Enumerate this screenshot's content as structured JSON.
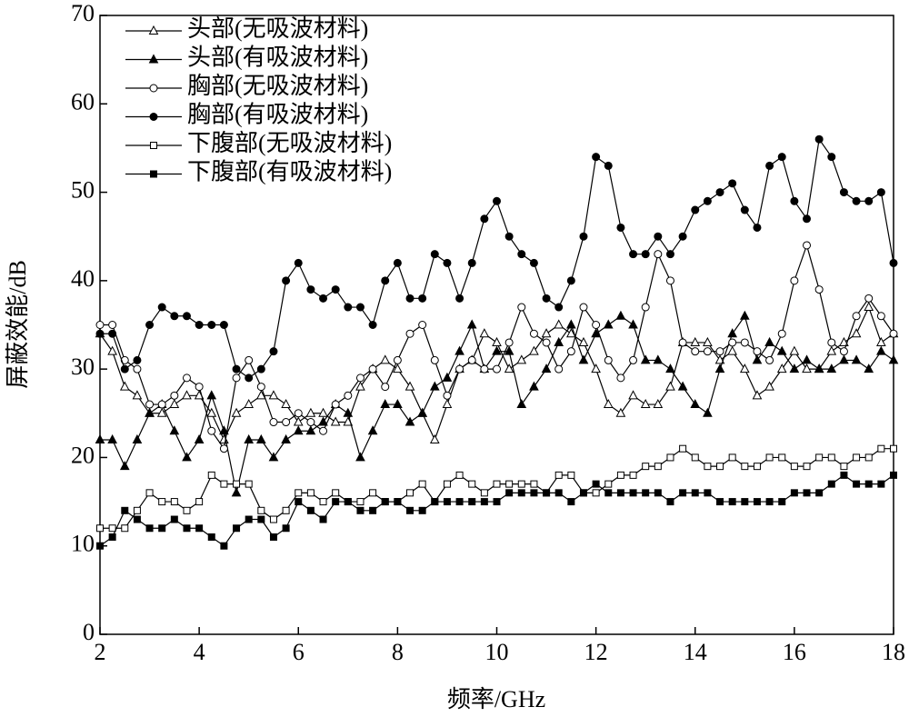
{
  "chart_data": {
    "type": "line",
    "xlabel": "频率/GHz",
    "ylabel": "屏蔽效能/dB",
    "xlim": [
      2,
      18
    ],
    "xticks": [
      2,
      4,
      6,
      8,
      10,
      12,
      14,
      16,
      18
    ],
    "ylim": [
      0,
      70
    ],
    "yticks": [
      0,
      10,
      20,
      30,
      40,
      50,
      60,
      70
    ],
    "legend": "upper-left",
    "x": [
      2,
      2.25,
      2.5,
      2.75,
      3,
      3.25,
      3.5,
      3.75,
      4,
      4.25,
      4.5,
      4.75,
      5,
      5.25,
      5.5,
      5.75,
      6,
      6.25,
      6.5,
      6.75,
      7,
      7.25,
      7.5,
      7.75,
      8,
      8.25,
      8.5,
      8.75,
      9,
      9.25,
      9.5,
      9.75,
      10,
      10.25,
      10.5,
      10.75,
      11,
      11.25,
      11.5,
      11.75,
      12,
      12.25,
      12.5,
      12.75,
      13,
      13.25,
      13.5,
      13.75,
      14,
      14.25,
      14.5,
      14.75,
      15,
      15.25,
      15.5,
      15.75,
      16,
      16.25,
      16.5,
      16.75,
      17,
      17.25,
      17.5,
      17.75,
      18
    ],
    "series": [
      {
        "name": "头部(无吸波材料)",
        "color": "#000000",
        "marker": "triangle-open",
        "values": [
          34,
          32,
          28,
          27,
          25,
          25,
          26,
          27,
          27,
          25,
          22,
          25,
          26,
          27,
          27,
          26,
          24,
          25,
          25,
          24,
          24,
          28,
          30,
          31,
          30,
          28,
          25,
          22,
          26,
          30,
          31,
          34,
          33,
          30,
          31,
          32,
          34,
          35,
          34,
          33,
          30,
          26,
          25,
          27,
          26,
          26,
          28,
          33,
          33,
          33,
          31,
          32,
          30,
          27,
          28,
          30,
          32,
          30,
          30,
          32,
          33,
          34,
          37,
          33,
          34
        ]
      },
      {
        "name": "头部(有吸波材料)",
        "color": "#000000",
        "marker": "triangle-filled",
        "values": [
          22,
          22,
          19,
          22,
          25,
          26,
          23,
          20,
          22,
          27,
          23,
          16,
          22,
          22,
          20,
          22,
          23,
          23,
          24,
          26,
          25,
          20,
          23,
          26,
          26,
          24,
          25,
          28,
          29,
          32,
          35,
          30,
          32,
          32,
          26,
          28,
          30,
          33,
          35,
          31,
          34,
          35,
          36,
          35,
          31,
          31,
          30,
          28,
          26,
          25,
          30,
          34,
          36,
          31,
          33,
          32,
          30,
          31,
          30,
          30,
          31,
          31,
          30,
          32,
          31
        ]
      },
      {
        "name": "胸部(无吸波材料)",
        "color": "#000000",
        "marker": "circle-open",
        "values": [
          35,
          35,
          31,
          30,
          26,
          26,
          27,
          29,
          28,
          23,
          21,
          29,
          31,
          28,
          24,
          24,
          25,
          24,
          23,
          26,
          27,
          29,
          30,
          28,
          31,
          34,
          35,
          31,
          27,
          30,
          31,
          30,
          30,
          33,
          37,
          34,
          33,
          30,
          32,
          37,
          35,
          31,
          29,
          31,
          37,
          43,
          40,
          33,
          32,
          32,
          32,
          33,
          33,
          32,
          31,
          34,
          40,
          44,
          39,
          33,
          32,
          36,
          38,
          36,
          34
        ]
      },
      {
        "name": "胸部(有吸波材料)",
        "color": "#000000",
        "marker": "circle-filled",
        "values": [
          34,
          34,
          30,
          31,
          35,
          37,
          36,
          36,
          35,
          35,
          35,
          30,
          29,
          30,
          32,
          40,
          42,
          39,
          38,
          39,
          37,
          37,
          35,
          40,
          42,
          38,
          38,
          43,
          42,
          38,
          42,
          47,
          49,
          45,
          43,
          42,
          38,
          37,
          40,
          45,
          54,
          53,
          46,
          43,
          43,
          45,
          43,
          45,
          48,
          49,
          50,
          51,
          48,
          46,
          53,
          54,
          49,
          47,
          56,
          54,
          50,
          49,
          49,
          50,
          42
        ]
      },
      {
        "name": "下腹部(无吸波材料)",
        "color": "#000000",
        "marker": "square-open",
        "values": [
          12,
          12,
          12,
          14,
          16,
          15,
          15,
          14,
          15,
          18,
          17,
          17,
          17,
          14,
          13,
          14,
          16,
          16,
          15,
          16,
          15,
          15,
          16,
          15,
          15,
          16,
          17,
          15,
          17,
          18,
          17,
          16,
          17,
          17,
          17,
          17,
          16,
          18,
          18,
          16,
          16,
          17,
          18,
          18,
          19,
          19,
          20,
          21,
          20,
          19,
          19,
          20,
          19,
          19,
          20,
          20,
          19,
          19,
          20,
          20,
          19,
          20,
          20,
          21,
          21
        ]
      },
      {
        "name": "下腹部(有吸波材料)",
        "color": "#000000",
        "marker": "square-filled",
        "values": [
          10,
          11,
          14,
          13,
          12,
          12,
          13,
          12,
          12,
          11,
          10,
          12,
          13,
          13,
          11,
          12,
          15,
          14,
          13,
          15,
          15,
          14,
          14,
          15,
          15,
          14,
          14,
          15,
          15,
          15,
          15,
          15,
          15,
          16,
          16,
          16,
          16,
          16,
          15,
          16,
          17,
          16,
          16,
          16,
          16,
          16,
          15,
          16,
          16,
          16,
          15,
          15,
          15,
          15,
          15,
          15,
          16,
          16,
          16,
          17,
          18,
          17,
          17,
          17,
          18
        ]
      }
    ]
  }
}
